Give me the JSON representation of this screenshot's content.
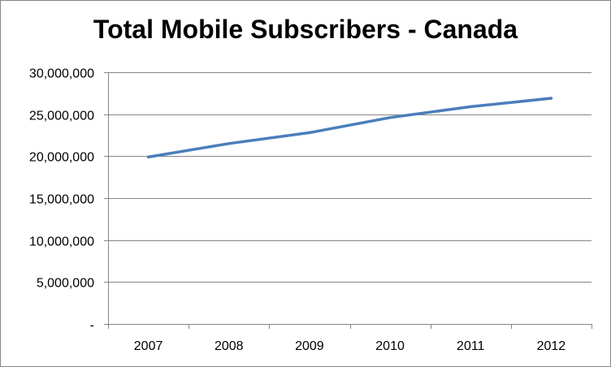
{
  "chart_data": {
    "type": "line",
    "title": "Total Mobile Subscribers - Canada",
    "xlabel": "",
    "ylabel": "",
    "categories": [
      "2007",
      "2008",
      "2009",
      "2010",
      "2011",
      "2012"
    ],
    "series": [
      {
        "values": [
          19900000,
          21500000,
          22800000,
          24600000,
          25900000,
          26900000
        ]
      }
    ],
    "ylim": [
      0,
      30000000
    ],
    "yticks": [
      0,
      5000000,
      10000000,
      15000000,
      20000000,
      25000000,
      30000000
    ],
    "ytick_labels": [
      "-",
      "5,000,000",
      "10,000,000",
      "15,000,000",
      "20,000,000",
      "25,000,000",
      "30,000,000"
    ],
    "grid": true,
    "legend": "none",
    "line_color": "#4a7ebb",
    "grid_color": "#868686"
  }
}
